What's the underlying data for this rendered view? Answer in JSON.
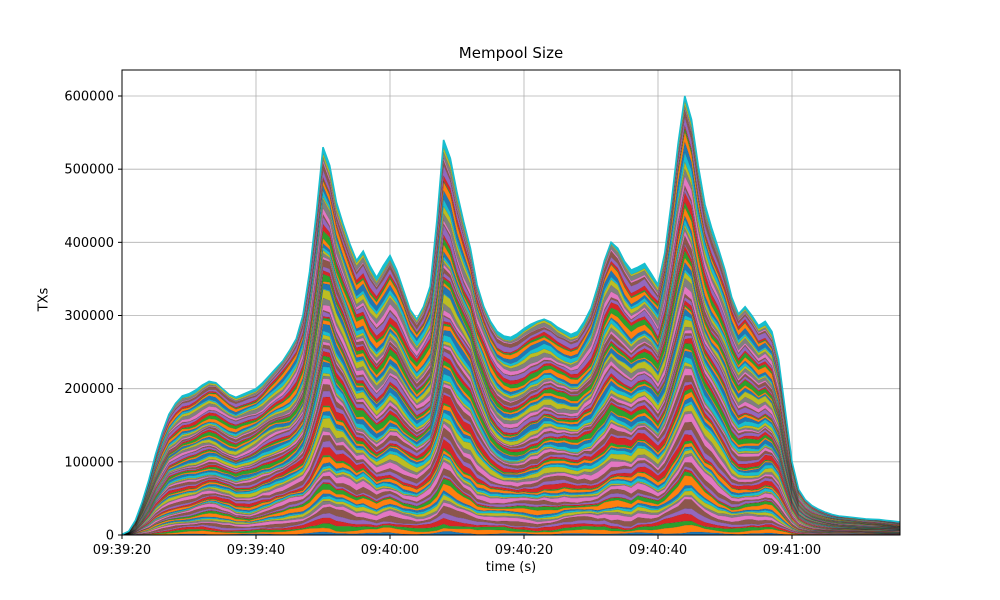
{
  "chart_data": {
    "type": "area",
    "stacked": true,
    "title": "Mempool Size",
    "xlabel": "time (s)",
    "ylabel": "TXs",
    "legend": "none",
    "grid": true,
    "grid_color": "#b0b0b0",
    "envelope_color": "#17becf",
    "palette": [
      "#1f77b4",
      "#ff7f0e",
      "#2ca02c",
      "#d62728",
      "#9467bd",
      "#8c564b",
      "#e377c2",
      "#7f7f7f",
      "#bcbd22",
      "#17becf"
    ],
    "num_layers": 90,
    "series_note": "many unlabeled stacked components; per-sample stacked total captured below",
    "y_ticks": [
      0,
      100000,
      200000,
      300000,
      400000,
      500000,
      600000
    ],
    "ylim": [
      0,
      635000
    ],
    "x_tick_labels": [
      "09:39:20",
      "09:39:40",
      "09:40:00",
      "09:40:20",
      "09:40:40",
      "09:41:00"
    ],
    "x_tick_seconds": [
      0,
      20,
      40,
      60,
      80,
      100
    ],
    "x_start_label": "09:39:20",
    "x_seconds": [
      0,
      1,
      2,
      3,
      4,
      5,
      6,
      7,
      8,
      9,
      10,
      11,
      12,
      13,
      14,
      15,
      16,
      17,
      18,
      19,
      20,
      21,
      22,
      23,
      24,
      25,
      26,
      27,
      28,
      29,
      30,
      31,
      32,
      33,
      34,
      35,
      36,
      37,
      38,
      39,
      40,
      41,
      42,
      43,
      44,
      45,
      46,
      47,
      48,
      49,
      50,
      51,
      52,
      53,
      54,
      55,
      56,
      57,
      58,
      59,
      60,
      61,
      62,
      63,
      64,
      65,
      66,
      67,
      68,
      69,
      70,
      71,
      72,
      73,
      74,
      75,
      76,
      77,
      78,
      79,
      80,
      81,
      82,
      83,
      84,
      85,
      86,
      87,
      88,
      89,
      90,
      91,
      92,
      93,
      94,
      95,
      96,
      97,
      98,
      99,
      100,
      101,
      102,
      103,
      104,
      105,
      106,
      107,
      108,
      109,
      110,
      111,
      112,
      113,
      114,
      115,
      116
    ],
    "total": [
      1000,
      5000,
      20000,
      45000,
      75000,
      110000,
      140000,
      165000,
      180000,
      190000,
      193000,
      198000,
      205000,
      210000,
      208000,
      200000,
      192000,
      188000,
      192000,
      196000,
      200000,
      208000,
      218000,
      228000,
      238000,
      252000,
      268000,
      300000,
      360000,
      440000,
      530000,
      505000,
      455000,
      425000,
      398000,
      375000,
      388000,
      368000,
      352000,
      368000,
      382000,
      362000,
      335000,
      308000,
      295000,
      312000,
      340000,
      430000,
      540000,
      515000,
      468000,
      428000,
      392000,
      342000,
      312000,
      292000,
      278000,
      272000,
      270000,
      275000,
      282000,
      288000,
      292000,
      295000,
      291000,
      284000,
      279000,
      274000,
      278000,
      292000,
      310000,
      340000,
      375000,
      400000,
      392000,
      374000,
      362000,
      366000,
      371000,
      357000,
      342000,
      385000,
      455000,
      535000,
      600000,
      568000,
      505000,
      452000,
      420000,
      392000,
      362000,
      325000,
      302000,
      312000,
      300000,
      286000,
      292000,
      278000,
      240000,
      170000,
      100000,
      62000,
      48000,
      40000,
      35000,
      31000,
      28000,
      26000,
      25000,
      24000,
      23000,
      22000,
      21500,
      21000,
      20000,
      19000,
      18000
    ]
  }
}
